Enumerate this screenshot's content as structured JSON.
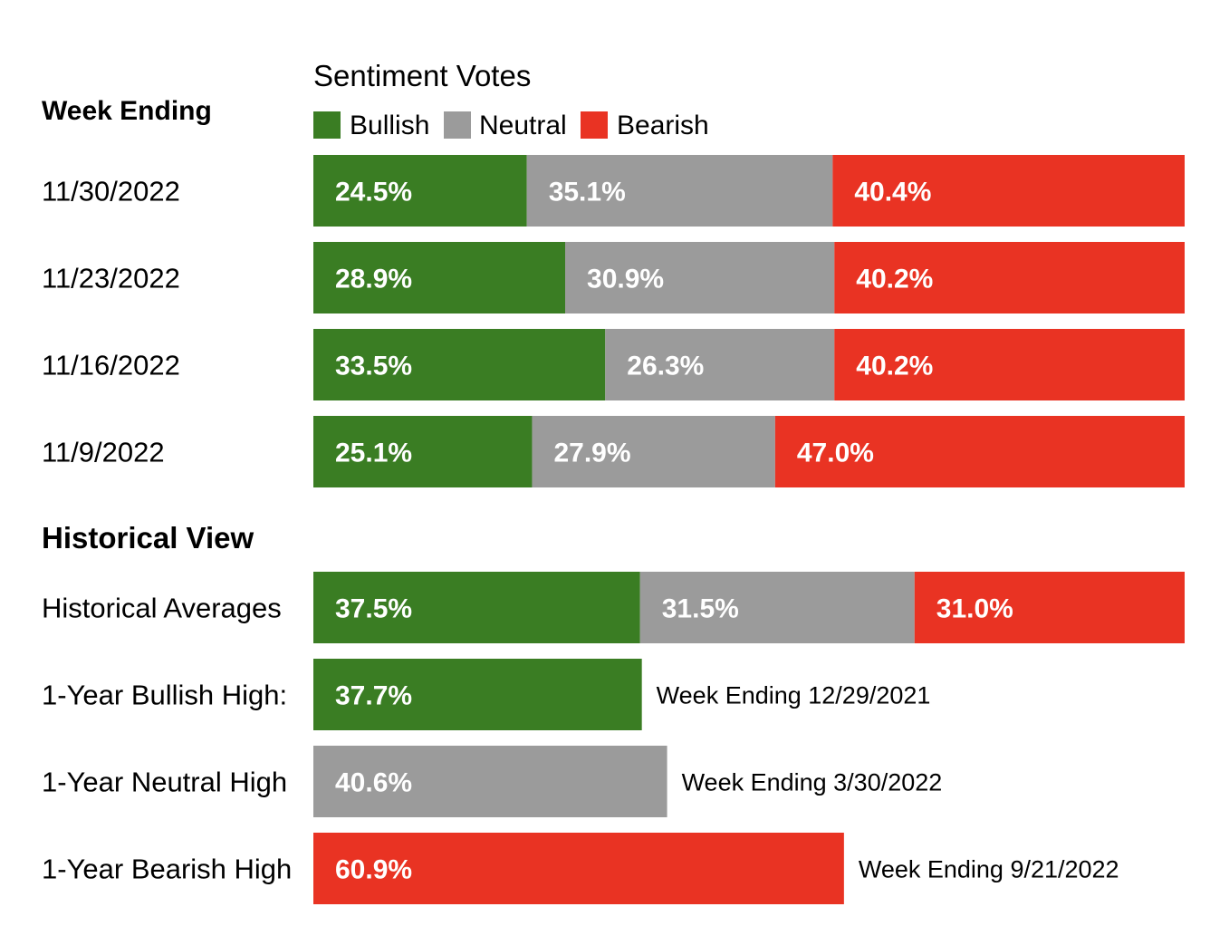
{
  "chart_data": {
    "type": "bar",
    "title": "Sentiment Votes",
    "row_header": "Week Ending",
    "history_heading": "Historical View",
    "legend_position": "top",
    "colors": {
      "Bullish": "#3a7d23",
      "Neutral": "#9b9b9b",
      "Bearish": "#e93323"
    },
    "series": [
      {
        "name": "Bullish"
      },
      {
        "name": "Neutral"
      },
      {
        "name": "Bearish"
      }
    ],
    "weekly": [
      {
        "label": "11/30/2022",
        "values": [
          24.5,
          35.1,
          40.4
        ],
        "texts": [
          "24.5%",
          "35.1%",
          "40.4%"
        ]
      },
      {
        "label": "11/23/2022",
        "values": [
          28.9,
          30.9,
          40.2
        ],
        "texts": [
          "28.9%",
          "30.9%",
          "40.2%"
        ]
      },
      {
        "label": "11/16/2022",
        "values": [
          33.5,
          26.3,
          40.2
        ],
        "texts": [
          "33.5%",
          "26.3%",
          "40.2%"
        ]
      },
      {
        "label": "11/9/2022",
        "values": [
          25.1,
          27.9,
          47.0
        ],
        "texts": [
          "25.1%",
          "27.9%",
          "47.0%"
        ]
      }
    ],
    "historical": {
      "label": "Historical Averages",
      "values": [
        37.5,
        31.5,
        31.0
      ],
      "texts": [
        "37.5%",
        "31.5%",
        "31.0%"
      ]
    },
    "highs": [
      {
        "label": "1-Year Bullish High:",
        "series": "Bullish",
        "value": 37.7,
        "text": "37.7%",
        "note": "Week Ending 12/29/2021"
      },
      {
        "label": "1-Year Neutral High",
        "series": "Neutral",
        "value": 40.6,
        "text": "40.6%",
        "note": "Week Ending 3/30/2022"
      },
      {
        "label": "1-Year Bearish High",
        "series": "Bearish",
        "value": 60.9,
        "text": "60.9%",
        "note": "Week Ending 9/21/2022"
      }
    ],
    "xlim": [
      0,
      100
    ]
  }
}
